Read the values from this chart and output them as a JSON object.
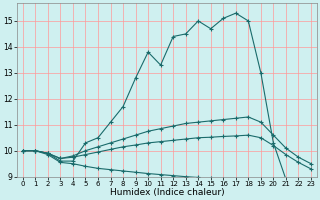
{
  "xlabel": "Humidex (Indice chaleur)",
  "bg_color": "#cff0f0",
  "line_color": "#1a6b6b",
  "grid_color_v": "#ff9999",
  "grid_color_h": "#ddaaaa",
  "xlim": [
    -0.5,
    23.5
  ],
  "ylim": [
    9.0,
    15.7
  ],
  "yticks": [
    9,
    10,
    11,
    12,
    13,
    14,
    15
  ],
  "xticks": [
    0,
    1,
    2,
    3,
    4,
    5,
    6,
    7,
    8,
    9,
    10,
    11,
    12,
    13,
    14,
    15,
    16,
    17,
    18,
    19,
    20,
    21,
    22,
    23
  ],
  "lines": [
    {
      "x": [
        0,
        1,
        2,
        3,
        4,
        5,
        6,
        7,
        8,
        9,
        10,
        11,
        12,
        13,
        14,
        15,
        16,
        17,
        18,
        19,
        20,
        21,
        22,
        23
      ],
      "y": [
        10.0,
        10.0,
        9.9,
        9.6,
        9.6,
        10.3,
        10.5,
        11.1,
        11.7,
        12.8,
        13.8,
        13.3,
        14.4,
        14.5,
        15.0,
        14.7,
        15.1,
        15.3,
        15.0,
        13.0,
        10.3,
        8.9,
        8.8,
        8.7
      ]
    },
    {
      "x": [
        0,
        1,
        2,
        3,
        4,
        5,
        6,
        7,
        8,
        9,
        10,
        11,
        12,
        13,
        14,
        15,
        16,
        17,
        18,
        19,
        20,
        21,
        22,
        23
      ],
      "y": [
        10.0,
        10.0,
        9.9,
        9.7,
        9.8,
        10.0,
        10.15,
        10.3,
        10.45,
        10.6,
        10.75,
        10.85,
        10.95,
        11.05,
        11.1,
        11.15,
        11.2,
        11.25,
        11.3,
        11.1,
        10.6,
        10.1,
        9.75,
        9.5
      ]
    },
    {
      "x": [
        0,
        1,
        2,
        3,
        4,
        5,
        6,
        7,
        8,
        9,
        10,
        11,
        12,
        13,
        14,
        15,
        16,
        17,
        18,
        19,
        20,
        21,
        22,
        23
      ],
      "y": [
        10.0,
        10.0,
        9.9,
        9.7,
        9.75,
        9.85,
        9.95,
        10.05,
        10.15,
        10.22,
        10.3,
        10.35,
        10.4,
        10.45,
        10.5,
        10.52,
        10.55,
        10.57,
        10.6,
        10.5,
        10.2,
        9.85,
        9.55,
        9.3
      ]
    },
    {
      "x": [
        0,
        1,
        2,
        3,
        4,
        5,
        6,
        7,
        8,
        9,
        10,
        11,
        12,
        13,
        14,
        15,
        16,
        17,
        18,
        19,
        20,
        21,
        22,
        23
      ],
      "y": [
        10.0,
        10.0,
        9.85,
        9.55,
        9.5,
        9.4,
        9.32,
        9.27,
        9.22,
        9.17,
        9.12,
        9.08,
        9.04,
        9.0,
        8.97,
        8.93,
        8.9,
        8.87,
        8.85,
        8.83,
        8.81,
        8.79,
        8.77,
        8.75
      ]
    }
  ]
}
